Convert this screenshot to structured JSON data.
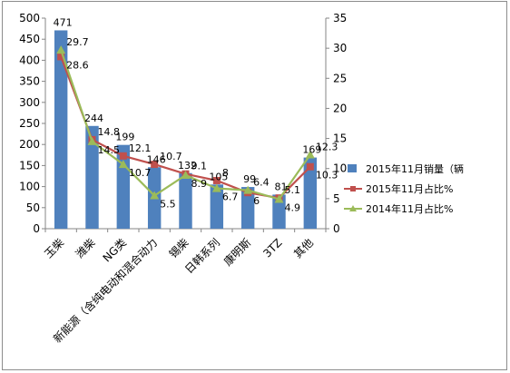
{
  "chart_data": {
    "type": "bar",
    "categories": [
      "玉柴",
      "潍柴",
      "NG类",
      "新能源（含纯电动和混合动力",
      "锡柴",
      "日韩系列",
      "康明斯",
      "3TZ",
      "其他"
    ],
    "series": [
      {
        "name": "2015年11月销量（辆",
        "type": "bar",
        "axis": "left",
        "color": "#4f81bd",
        "values": [
          471,
          244,
          199,
          146,
          132,
          105,
          99,
          81,
          169
        ],
        "labels": [
          "471",
          "244",
          "199",
          "146",
          "132",
          "105",
          "99",
          "81",
          "169"
        ]
      },
      {
        "name": "2015年11月占比%",
        "type": "line",
        "axis": "right",
        "color": "#c0504d",
        "marker": "square",
        "values": [
          28.6,
          14.8,
          12.1,
          10.7,
          9.1,
          8.0,
          6.0,
          5.1,
          10.3
        ],
        "labels": [
          "28.6",
          "14.8",
          "12.1",
          "10.7",
          "9.1",
          "8",
          "6",
          "5.1",
          "10.3"
        ]
      },
      {
        "name": "2014年11月占比%",
        "type": "line",
        "axis": "right",
        "color": "#9bbb59",
        "marker": "triangle",
        "values": [
          29.7,
          14.5,
          10.7,
          5.5,
          8.9,
          6.7,
          6.4,
          4.9,
          12.3
        ],
        "labels": [
          "29.7",
          "14.5",
          "10.7",
          "5.5",
          "8.9",
          "6.7",
          "6.4",
          "4.9",
          "12.3"
        ]
      }
    ],
    "y_left": {
      "min": 0,
      "max": 500,
      "step": 50,
      "ticks": [
        "0",
        "50",
        "100",
        "150",
        "200",
        "250",
        "300",
        "350",
        "400",
        "450",
        "500"
      ]
    },
    "y_right": {
      "min": 0,
      "max": 35,
      "step": 5,
      "ticks": [
        "0",
        "5",
        "10",
        "15",
        "20",
        "25",
        "30",
        "35"
      ]
    },
    "grid": false,
    "legend_position": "right"
  }
}
